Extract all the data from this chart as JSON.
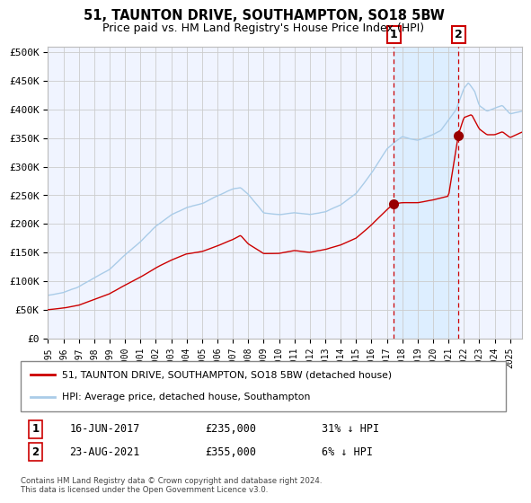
{
  "title": "51, TAUNTON DRIVE, SOUTHAMPTON, SO18 5BW",
  "subtitle": "Price paid vs. HM Land Registry's House Price Index (HPI)",
  "ylim": [
    0,
    510000
  ],
  "xlim_start": 1995.0,
  "xlim_end": 2025.8,
  "yticks": [
    0,
    50000,
    100000,
    150000,
    200000,
    250000,
    300000,
    350000,
    400000,
    450000,
    500000
  ],
  "ytick_labels": [
    "£0",
    "£50K",
    "£100K",
    "£150K",
    "£200K",
    "£250K",
    "£300K",
    "£350K",
    "£400K",
    "£450K",
    "£500K"
  ],
  "xticks": [
    1995,
    1996,
    1997,
    1998,
    1999,
    2000,
    2001,
    2002,
    2003,
    2004,
    2005,
    2006,
    2007,
    2008,
    2009,
    2010,
    2011,
    2012,
    2013,
    2014,
    2015,
    2016,
    2017,
    2018,
    2019,
    2020,
    2021,
    2022,
    2023,
    2024,
    2025
  ],
  "hpi_color": "#aacce8",
  "price_color": "#cc0000",
  "marker_color": "#990000",
  "vline_color": "#cc0000",
  "highlight_color": "#ddeeff",
  "sale1_x": 2017.45,
  "sale1_y": 235000,
  "sale2_x": 2021.64,
  "sale2_y": 355000,
  "legend_line1": "51, TAUNTON DRIVE, SOUTHAMPTON, SO18 5BW (detached house)",
  "legend_line2": "HPI: Average price, detached house, Southampton",
  "annot1_label": "1",
  "annot2_label": "2",
  "annot1_date": "16-JUN-2017",
  "annot1_price": "£235,000",
  "annot1_hpi": "31% ↓ HPI",
  "annot2_date": "23-AUG-2021",
  "annot2_price": "£355,000",
  "annot2_hpi": "6% ↓ HPI",
  "footnote": "Contains HM Land Registry data © Crown copyright and database right 2024.\nThis data is licensed under the Open Government Licence v3.0.",
  "grid_color": "#cccccc",
  "bg_color": "#ffffff",
  "plot_bg_color": "#f0f4ff"
}
